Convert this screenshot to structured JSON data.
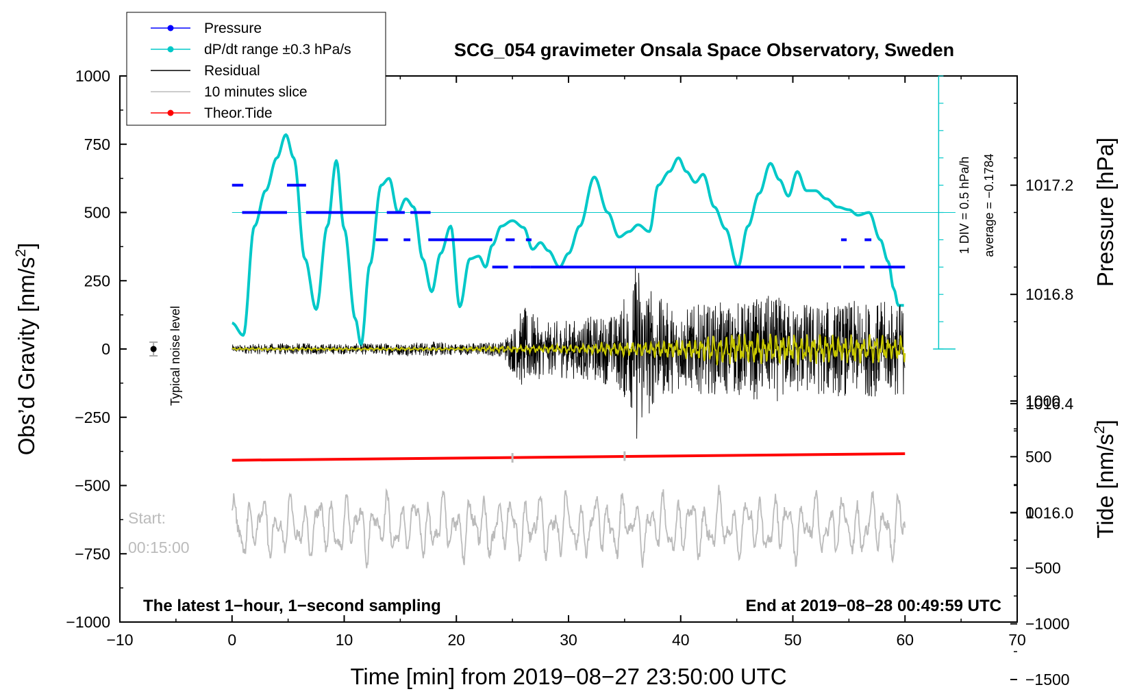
{
  "chart_data": {
    "type": "line",
    "title": "SCG_054 gravimeter Onsala Space Observatory, Sweden",
    "xlabel": "Time [min] from 2019−08−27 23:50:00 UTC",
    "xlim": [
      -10,
      70
    ],
    "x_ticks": [
      "−10",
      "0",
      "10",
      "20",
      "30",
      "40",
      "50",
      "60",
      "70"
    ],
    "x_tick_values": [
      -10,
      0,
      10,
      20,
      30,
      40,
      50,
      60,
      70
    ],
    "ylabel_left_text": "Obs’d Gravity [nm/s",
    "ylabel_left_sup": "2",
    "ylabel_left_tail": "]",
    "ylim_left": [
      -1000,
      1000
    ],
    "y_ticks_left": [
      "1000",
      "750",
      "500",
      "250",
      "0",
      "−250",
      "−500",
      "−750",
      "−1000"
    ],
    "y_tick_values_left": [
      1000,
      750,
      500,
      250,
      0,
      -250,
      -500,
      -750,
      -1000
    ],
    "ylabel_pressure": "Pressure [hPa]",
    "pressure_ticks": [
      "1017.2",
      "1016.8",
      "1016.4",
      "1016.0"
    ],
    "pressure_tick_values": [
      1017.2,
      1016.8,
      1016.4,
      1016.0
    ],
    "pressure_range": [
      1015.6,
      1017.6
    ],
    "ylabel_tide_text": "Tide [nm/s",
    "ylabel_tide_sup": "2",
    "ylabel_tide_tail": "]",
    "tide_ticks": [
      "1000",
      "500",
      "0",
      "−500",
      "−1000",
      "−1500"
    ],
    "tide_tick_values": [
      1000,
      500,
      0,
      -500,
      -1000,
      -1500
    ],
    "tide_range": [
      -1500,
      1000
    ],
    "rate_scale_label": "1 DIV = 0.5 hPa/h",
    "rate_average_label": "average = −0.1784",
    "noise_label": "Typical noise level",
    "noise_point": {
      "x": -7,
      "y": 0,
      "err": 25
    },
    "slice_start_label": "Start:",
    "slice_start_time": "00:15:00",
    "slice_markers_x": [
      25,
      35
    ],
    "footer_left": "The latest 1−hour, 1−second sampling",
    "footer_right": "End at 2019−08−28 00:49:59 UTC",
    "legend": [
      {
        "label": "Pressure",
        "color": "#0000ff",
        "marker": true
      },
      {
        "label": "dP/dt range ±0.3 hPa/s",
        "color": "#00c8c8",
        "marker": true
      },
      {
        "label": "Residual",
        "color": "#000000",
        "marker": false
      },
      {
        "label": "10 minutes slice",
        "color": "#bbbbbb",
        "marker": false
      },
      {
        "label": "Theor.Tide",
        "color": "#ff0000",
        "marker": true
      }
    ],
    "series": [
      {
        "name": "Pressure",
        "color": "#0000ff",
        "unit": "hPa",
        "segments": [
          {
            "x0": 0.0,
            "x1": 1.0,
            "y": 1017.2
          },
          {
            "x0": 0.9,
            "x1": 4.9,
            "y": 1017.1
          },
          {
            "x0": 4.9,
            "x1": 6.6,
            "y": 1017.2
          },
          {
            "x0": 6.6,
            "x1": 12.8,
            "y": 1017.1
          },
          {
            "x0": 13.8,
            "x1": 15.4,
            "y": 1017.1
          },
          {
            "x0": 15.9,
            "x1": 17.7,
            "y": 1017.1
          },
          {
            "x0": 12.8,
            "x1": 13.9,
            "y": 1017.0
          },
          {
            "x0": 15.3,
            "x1": 15.9,
            "y": 1017.0
          },
          {
            "x0": 17.5,
            "x1": 23.2,
            "y": 1017.0
          },
          {
            "x0": 24.4,
            "x1": 25.2,
            "y": 1017.0
          },
          {
            "x0": 26.2,
            "x1": 26.7,
            "y": 1017.0
          },
          {
            "x0": 23.2,
            "x1": 24.6,
            "y": 1016.9
          },
          {
            "x0": 25.1,
            "x1": 26.6,
            "y": 1016.9
          },
          {
            "x0": 26.6,
            "x1": 54.3,
            "y": 1016.9
          },
          {
            "x0": 54.5,
            "x1": 56.4,
            "y": 1016.9
          },
          {
            "x0": 56.9,
            "x1": 60.0,
            "y": 1016.9
          },
          {
            "x0": 54.3,
            "x1": 54.8,
            "y": 1017.0
          },
          {
            "x0": 56.4,
            "x1": 57.0,
            "y": 1017.0
          }
        ]
      },
      {
        "name": "dP/dt range ±0.3 hPa/s",
        "color": "#00c8c8",
        "unit": "nm/s2 axis",
        "x": [
          0,
          1,
          2,
          3,
          4,
          4.8,
          5.5,
          6.5,
          7.5,
          8.5,
          9.3,
          10,
          11,
          11.5,
          12.3,
          13.3,
          14,
          14.8,
          15.5,
          16.2,
          17,
          17.8,
          18.6,
          19.5,
          20.3,
          21.2,
          22,
          22.6,
          23.2,
          24,
          25,
          26,
          26.8,
          27.5,
          28.2,
          29.2,
          30,
          31,
          32.3,
          33.5,
          34.5,
          35.4,
          36.2,
          37.2,
          38,
          39,
          39.8,
          40.5,
          41.3,
          42,
          43,
          44,
          45.1,
          46,
          47,
          48,
          48.8,
          49.6,
          50.4,
          51.2,
          52,
          53,
          54,
          55,
          55.8,
          56.8,
          57.8,
          58.5,
          59,
          59.4,
          60
        ],
        "values": [
          95,
          50,
          450,
          580,
          700,
          785,
          700,
          330,
          145,
          450,
          690,
          440,
          110,
          15,
          310,
          600,
          625,
          500,
          550,
          520,
          330,
          210,
          350,
          450,
          155,
          330,
          340,
          300,
          380,
          450,
          470,
          445,
          365,
          390,
          360,
          300,
          350,
          450,
          630,
          500,
          410,
          430,
          455,
          430,
          600,
          650,
          700,
          650,
          610,
          640,
          520,
          440,
          300,
          450,
          570,
          680,
          620,
          560,
          650,
          580,
          580,
          550,
          520,
          510,
          490,
          500,
          400,
          320,
          220,
          160,
          160
        ]
      },
      {
        "name": "Residual",
        "color": "#000000",
        "unit": "nm/s2",
        "x": [
          0,
          5,
          10,
          15,
          18,
          20,
          24,
          25,
          26,
          28,
          30,
          34,
          35.5,
          36.2,
          36.8,
          38,
          40,
          42,
          45,
          48,
          50,
          55,
          60
        ],
        "envelope": [
          15,
          20,
          18,
          22,
          25,
          20,
          25,
          80,
          140,
          90,
          100,
          120,
          200,
          330,
          250,
          170,
          140,
          150,
          160,
          180,
          160,
          160,
          160
        ]
      },
      {
        "name": "Residual (filtered, yellow)",
        "color": "#c8c800",
        "unit": "nm/s2",
        "x": [
          0,
          20,
          24,
          30,
          35,
          40,
          45,
          50,
          55,
          60
        ],
        "envelope": [
          4,
          5,
          10,
          15,
          25,
          35,
          60,
          55,
          50,
          45
        ]
      },
      {
        "name": "10 minutes slice",
        "color": "#bbbbbb",
        "unit": "nm/s2 axis",
        "baseline": -650,
        "amplitude": 120
      },
      {
        "name": "Theor.Tide",
        "color": "#ff0000",
        "unit": "nm/s2",
        "x": [
          0,
          60
        ],
        "values": [
          468,
          527
        ]
      }
    ]
  }
}
